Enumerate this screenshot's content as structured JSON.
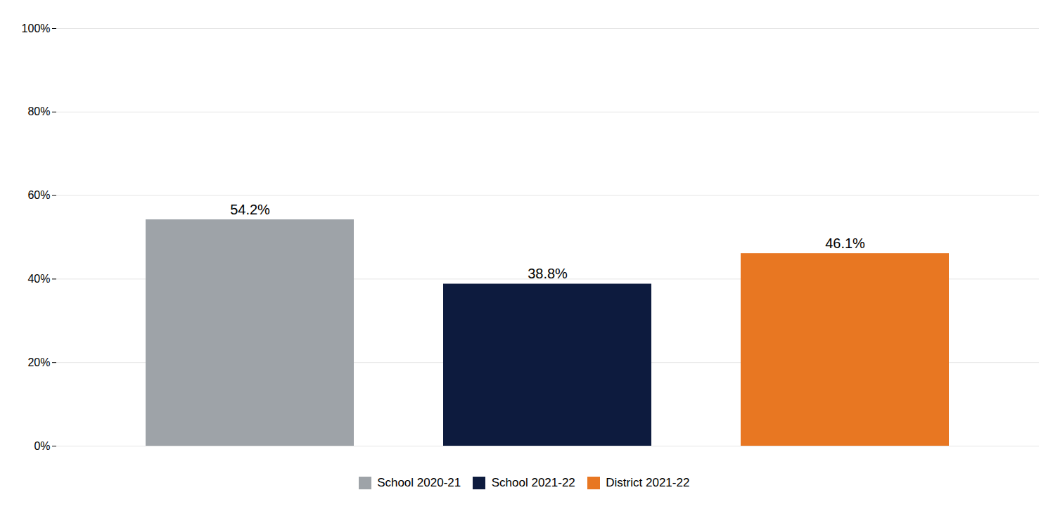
{
  "chart_data": {
    "type": "bar",
    "categories": [
      "School 2020-21",
      "School 2021-22",
      "District 2021-22"
    ],
    "values": [
      54.2,
      38.8,
      46.1
    ],
    "value_labels": [
      "54.2%",
      "38.8%",
      "46.1%"
    ],
    "colors": [
      "#9ea3a8",
      "#0d1b3e",
      "#e87722"
    ],
    "ylim": [
      0,
      100
    ],
    "yticks": [
      {
        "value": 0,
        "label": "0%"
      },
      {
        "value": 20,
        "label": "20%"
      },
      {
        "value": 40,
        "label": "40%"
      },
      {
        "value": 60,
        "label": "60%"
      },
      {
        "value": 80,
        "label": "80%"
      },
      {
        "value": 100,
        "label": "100%"
      }
    ],
    "grid": true,
    "data_labels": true,
    "tick_labels": "y",
    "legend": "bottom"
  }
}
